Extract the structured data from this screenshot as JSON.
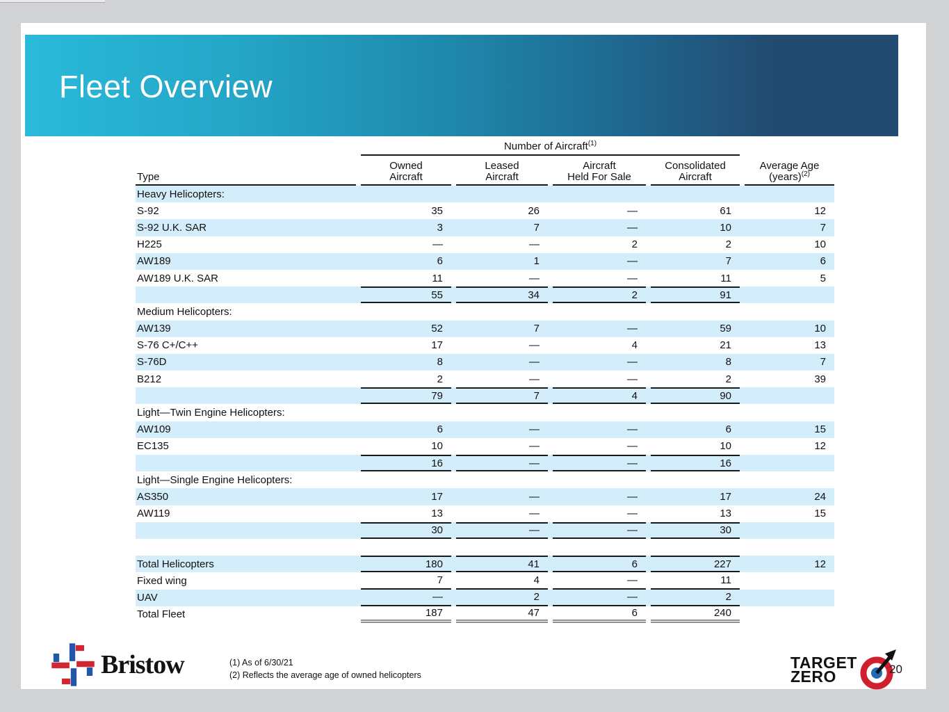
{
  "slide": {
    "title": "Fleet Overview",
    "page_number": "20"
  },
  "table": {
    "group_header": "Number of Aircraft",
    "group_header_sup": "(1)",
    "columns": {
      "type": "Type",
      "owned_line1": "Owned",
      "owned_line2": "Aircraft",
      "leased_line1": "Leased",
      "leased_line2": "Aircraft",
      "held_line1": "Aircraft",
      "held_line2": "Held For Sale",
      "consolidated_line1": "Consolidated",
      "consolidated_line2": "Aircraft",
      "age_line1": "Average Age",
      "age_line2": "(years)",
      "age_sup": "(2)"
    },
    "rows": [
      {
        "label": "Heavy Helicopters:",
        "cells": [
          "",
          "",
          "",
          "",
          ""
        ],
        "kind": "section"
      },
      {
        "label": "S-92",
        "cells": [
          "35",
          "26",
          "—",
          "61",
          "12"
        ],
        "kind": "data"
      },
      {
        "label": "S-92 U.K. SAR",
        "cells": [
          "3",
          "7",
          "—",
          "10",
          "7"
        ],
        "kind": "data"
      },
      {
        "label": "H225",
        "cells": [
          "—",
          "—",
          "2",
          "2",
          "10"
        ],
        "kind": "data"
      },
      {
        "label": "AW189",
        "cells": [
          "6",
          "1",
          "—",
          "7",
          "6"
        ],
        "kind": "data"
      },
      {
        "label": "AW189 U.K. SAR",
        "cells": [
          "11",
          "—",
          "—",
          "11",
          "5"
        ],
        "kind": "data"
      },
      {
        "label": "",
        "cells": [
          "55",
          "34",
          "2",
          "91",
          ""
        ],
        "kind": "subtotal"
      },
      {
        "label": "Medium Helicopters:",
        "cells": [
          "",
          "",
          "",
          "",
          ""
        ],
        "kind": "section"
      },
      {
        "label": "AW139",
        "cells": [
          "52",
          "7",
          "—",
          "59",
          "10"
        ],
        "kind": "data"
      },
      {
        "label": "S-76 C+/C++",
        "cells": [
          "17",
          "—",
          "4",
          "21",
          "13"
        ],
        "kind": "data"
      },
      {
        "label": "S-76D",
        "cells": [
          "8",
          "—",
          "—",
          "8",
          "7"
        ],
        "kind": "data"
      },
      {
        "label": "B212",
        "cells": [
          "2",
          "—",
          "—",
          "2",
          "39"
        ],
        "kind": "data"
      },
      {
        "label": "",
        "cells": [
          "79",
          "7",
          "4",
          "90",
          ""
        ],
        "kind": "subtotal"
      },
      {
        "label": "Light—Twin Engine Helicopters:",
        "cells": [
          "",
          "",
          "",
          "",
          ""
        ],
        "kind": "section"
      },
      {
        "label": "AW109",
        "cells": [
          "6",
          "—",
          "—",
          "6",
          "15"
        ],
        "kind": "data"
      },
      {
        "label": "EC135",
        "cells": [
          "10",
          "—",
          "—",
          "10",
          "12"
        ],
        "kind": "data"
      },
      {
        "label": "",
        "cells": [
          "16",
          "—",
          "—",
          "16",
          ""
        ],
        "kind": "subtotal"
      },
      {
        "label": "Light—Single Engine Helicopters:",
        "cells": [
          "",
          "",
          "",
          "",
          ""
        ],
        "kind": "section"
      },
      {
        "label": "AS350",
        "cells": [
          "17",
          "—",
          "—",
          "17",
          "24"
        ],
        "kind": "data"
      },
      {
        "label": "AW119",
        "cells": [
          "13",
          "—",
          "—",
          "13",
          "15"
        ],
        "kind": "data"
      },
      {
        "label": "",
        "cells": [
          "30",
          "—",
          "—",
          "30",
          ""
        ],
        "kind": "subtotal"
      },
      {
        "label": "",
        "cells": [
          "",
          "",
          "",
          "",
          ""
        ],
        "kind": "spacer"
      },
      {
        "label": "Total Helicopters",
        "cells": [
          "180",
          "41",
          "6",
          "227",
          "12"
        ],
        "kind": "total"
      },
      {
        "label": "Fixed wing",
        "cells": [
          "7",
          "4",
          "—",
          "11",
          ""
        ],
        "kind": "total-sub"
      },
      {
        "label": "UAV",
        "cells": [
          "—",
          "2",
          "—",
          "2",
          ""
        ],
        "kind": "total-sub"
      },
      {
        "label": "Total Fleet",
        "cells": [
          "187",
          "47",
          "6",
          "240",
          ""
        ],
        "kind": "grand-total"
      }
    ]
  },
  "footnotes": {
    "line1": "(1) As of 6/30/21",
    "line2": "(2) Reflects the average age of owned helicopters"
  },
  "logos": {
    "bristow_wordmark": "Bristow",
    "target_line1": "TARGET",
    "target_line2": "ZERO"
  },
  "colors": {
    "banner_gradient_start": "#2ABADA",
    "banner_gradient_mid": "#1F89AC",
    "banner_gradient_end": "#234A70",
    "row_band": "#D4EDFA",
    "rule_dark": "#1A1A1A",
    "rule_double_gray": "#8E8E8E",
    "bristow_blue": "#2456A8",
    "bristow_red": "#D22630",
    "target_red": "#D01F2E",
    "target_blue": "#1F6CB4"
  }
}
